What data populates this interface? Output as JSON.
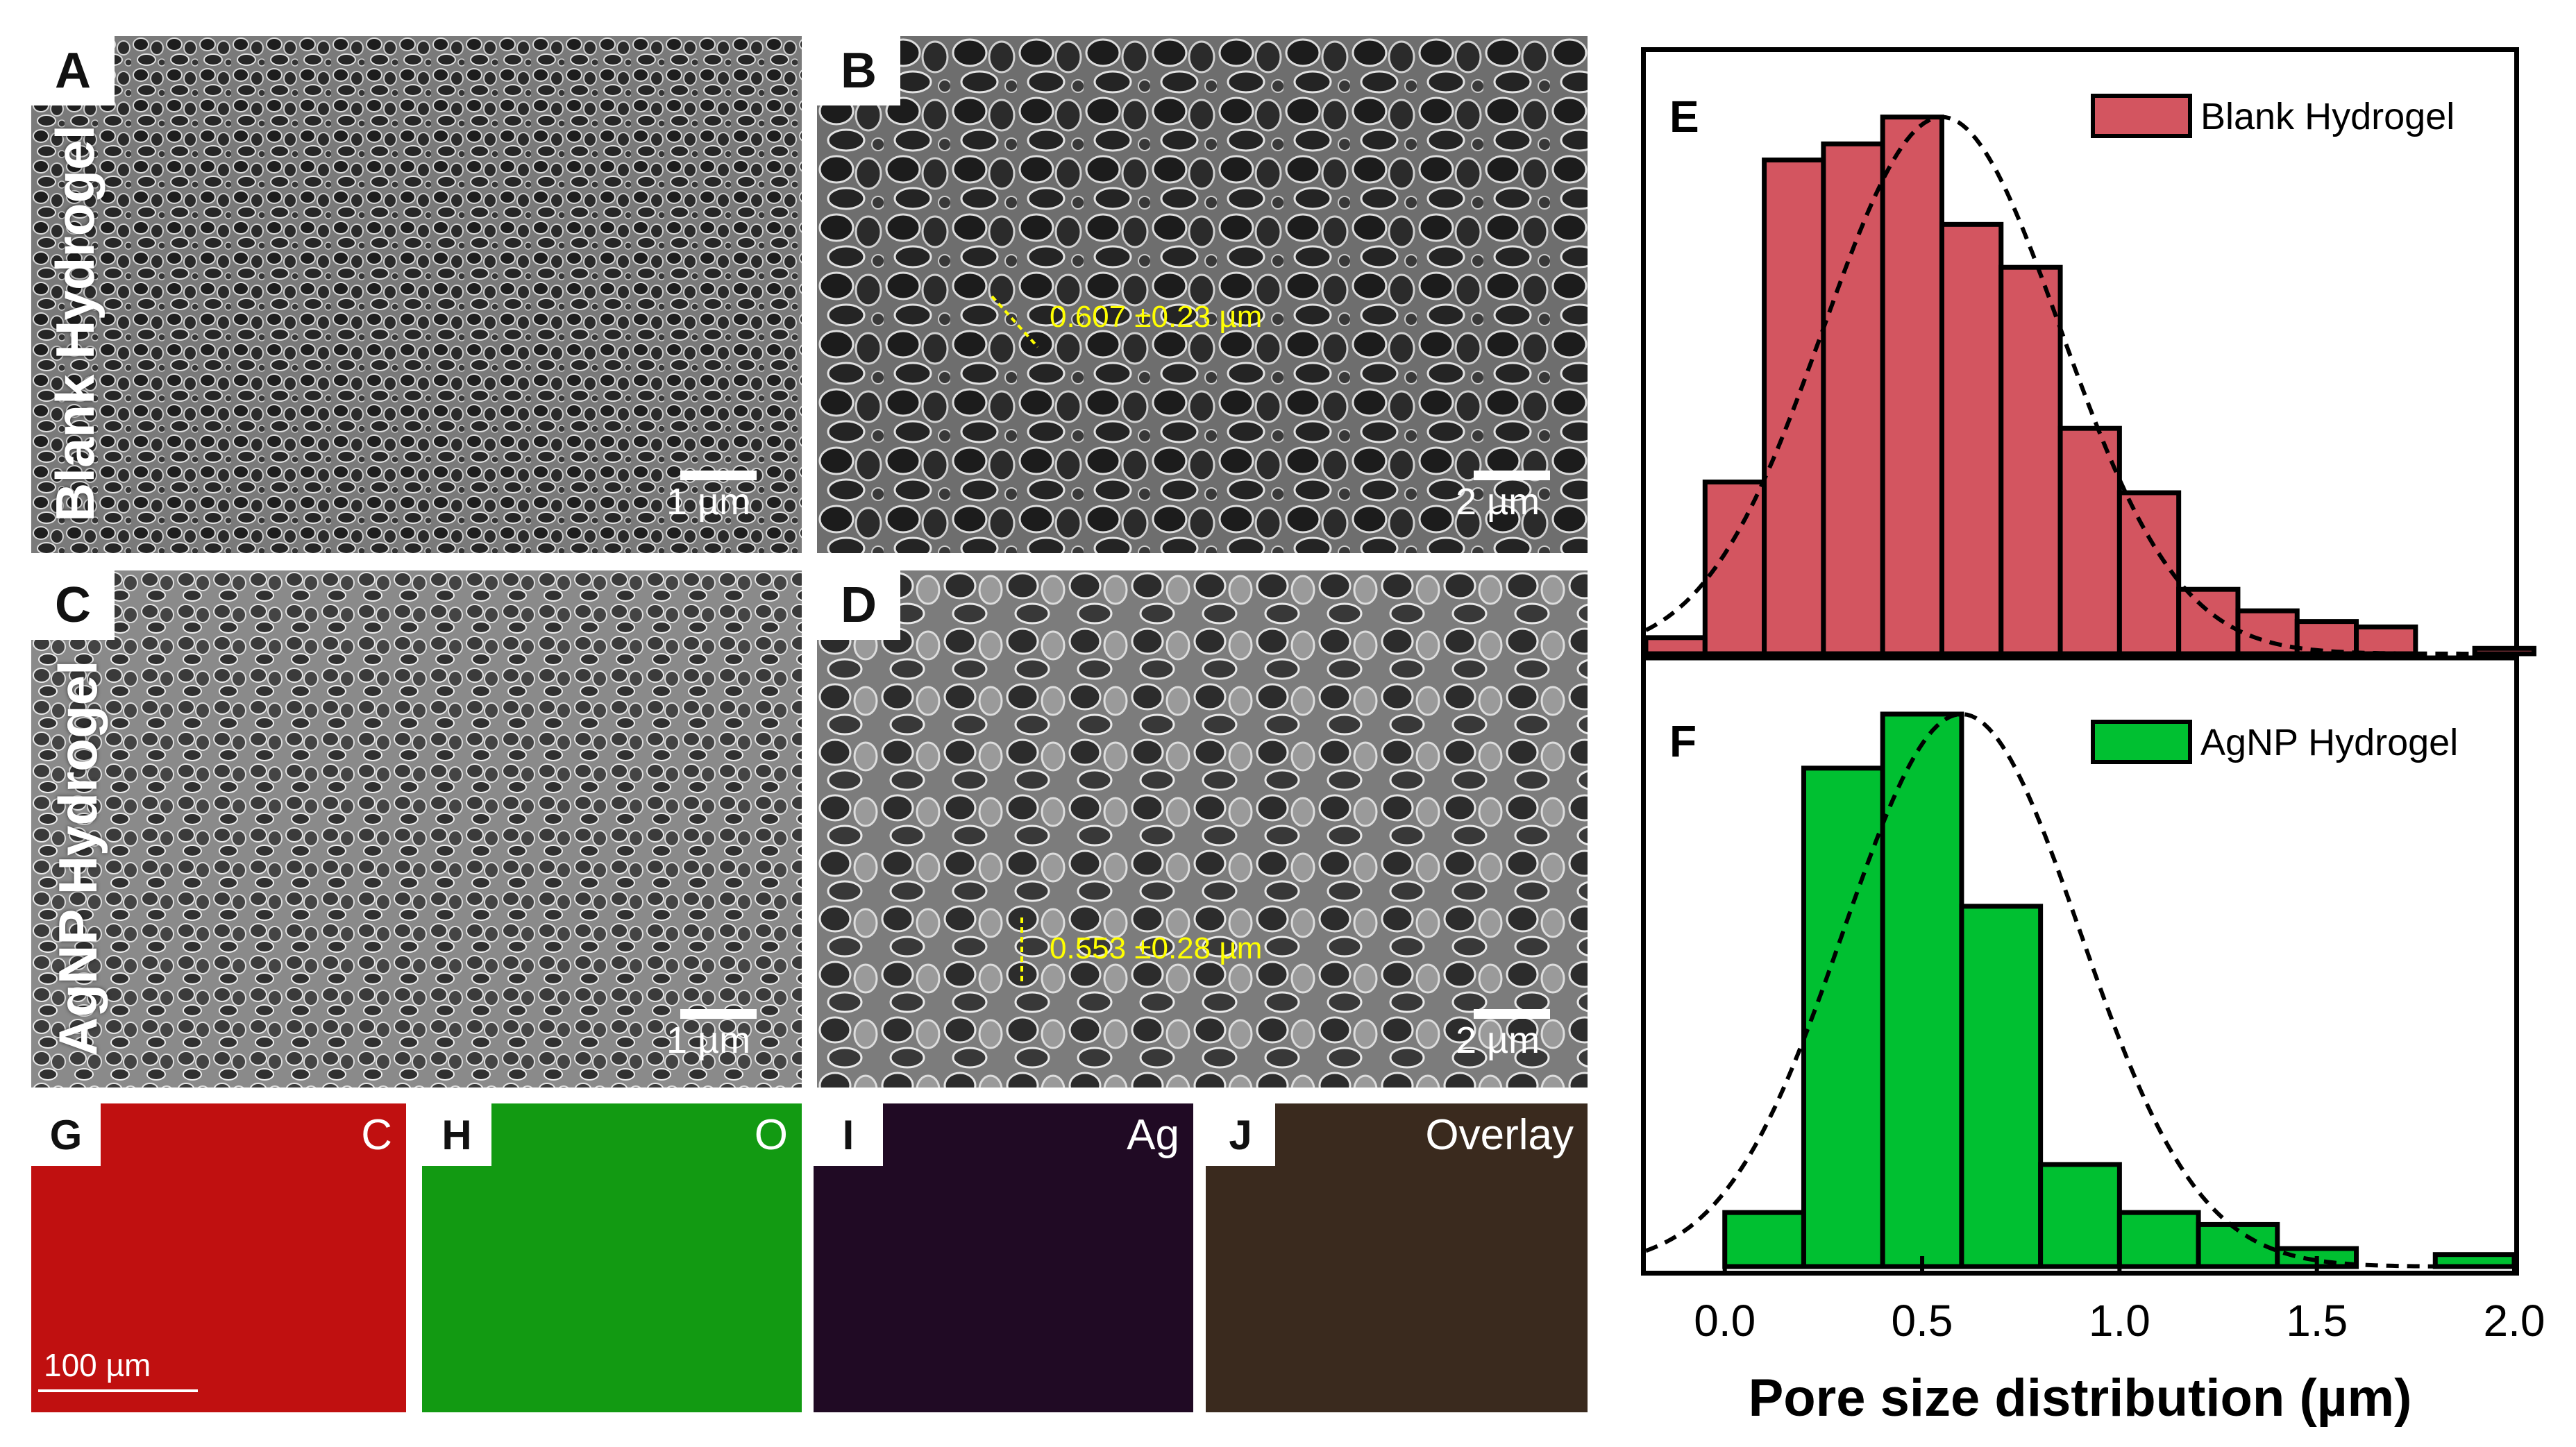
{
  "sem_panels": {
    "A": {
      "letter": "A",
      "side_label": "Blank Hydrogel",
      "scale": "1 µm"
    },
    "B": {
      "letter": "B",
      "scale": "2 µm",
      "measurement": "0.607 ±0.23 µm"
    },
    "C": {
      "letter": "C",
      "side_label": "AgNP Hydrogel",
      "scale": "1 µm"
    },
    "D": {
      "letter": "D",
      "scale": "2 µm",
      "measurement": "0.553 ±0.28 µm"
    }
  },
  "eds_panels": [
    {
      "letter": "G",
      "element": "C",
      "color": "#c01010"
    },
    {
      "letter": "H",
      "element": "O",
      "color": "#129a12"
    },
    {
      "letter": "I",
      "element": "Ag",
      "color": "#200a24"
    },
    {
      "letter": "J",
      "element": "Overlay",
      "color": "#3a2a1e"
    }
  ],
  "eds_scale": "100 µm",
  "chart_data": [
    {
      "type": "bar",
      "panel": "E",
      "legend": "Blank Hydrogel",
      "legend_position": "top-right",
      "bar_color": "#d35560",
      "bin_width": 0.15,
      "bin_starts": [
        -0.2,
        -0.05,
        0.1,
        0.25,
        0.4,
        0.55,
        0.7,
        0.85,
        1.0,
        1.15,
        1.3,
        1.45,
        1.6,
        1.75,
        1.9
      ],
      "values": [
        3,
        32,
        92,
        95,
        100,
        80,
        72,
        42,
        30,
        12,
        8,
        6,
        5,
        0,
        1
      ],
      "fit_curve": {
        "type": "gaussian",
        "mean": 0.55,
        "sd": 0.3,
        "peak": 100
      },
      "xlim": [
        -0.2,
        2.0
      ],
      "ylim": [
        0,
        105
      ]
    },
    {
      "type": "bar",
      "panel": "F",
      "legend": "AgNP Hydrogel",
      "legend_position": "top-right",
      "bar_color": "#00c031",
      "bin_width": 0.2,
      "bin_starts": [
        0.0,
        0.2,
        0.4,
        0.6,
        0.8,
        1.0,
        1.2,
        1.4,
        1.6,
        1.8
      ],
      "values": [
        9,
        83,
        92,
        60,
        17,
        9,
        7,
        3,
        0,
        2
      ],
      "fit_curve": {
        "type": "gaussian",
        "mean": 0.6,
        "sd": 0.3,
        "peak": 92
      },
      "xlim": [
        -0.2,
        2.0
      ],
      "ylim": [
        0,
        95
      ]
    }
  ],
  "x_ticks": [
    "0.0",
    "0.5",
    "1.0",
    "1.5",
    "2.0"
  ],
  "x_tick_values": [
    0.0,
    0.5,
    1.0,
    1.5,
    2.0
  ],
  "xlabel": "Pore size distribution (µm)"
}
